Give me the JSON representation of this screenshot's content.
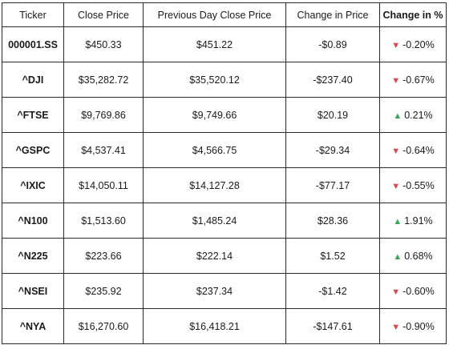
{
  "colors": {
    "down": "#e0454b",
    "up": "#3aa553"
  },
  "table": {
    "headers": [
      "Ticker",
      "Close Price",
      "Previous Day Close Price",
      "Change in Price",
      "Change in %"
    ],
    "rows": [
      {
        "ticker": "000001.SS",
        "close": "$450.33",
        "prev_close": "$451.22",
        "change": "-$0.89",
        "direction": "down",
        "arrow_icon": "triangle-down-icon",
        "pct": "-0.20%"
      },
      {
        "ticker": "^DJI",
        "close": "$35,282.72",
        "prev_close": "$35,520.12",
        "change": "-$237.40",
        "direction": "down",
        "arrow_icon": "triangle-down-icon",
        "pct": "-0.67%"
      },
      {
        "ticker": "^FTSE",
        "close": "$9,769.86",
        "prev_close": "$9,749.66",
        "change": "$20.19",
        "direction": "up",
        "arrow_icon": "triangle-up-icon",
        "pct": "0.21%"
      },
      {
        "ticker": "^GSPC",
        "close": "$4,537.41",
        "prev_close": "$4,566.75",
        "change": "-$29.34",
        "direction": "down",
        "arrow_icon": "triangle-down-icon",
        "pct": "-0.64%"
      },
      {
        "ticker": "^IXIC",
        "close": "$14,050.11",
        "prev_close": "$14,127.28",
        "change": "-$77.17",
        "direction": "down",
        "arrow_icon": "triangle-down-icon",
        "pct": "-0.55%"
      },
      {
        "ticker": "^N100",
        "close": "$1,513.60",
        "prev_close": "$1,485.24",
        "change": "$28.36",
        "direction": "up",
        "arrow_icon": "triangle-up-icon",
        "pct": "1.91%"
      },
      {
        "ticker": "^N225",
        "close": "$223.66",
        "prev_close": "$222.14",
        "change": "$1.52",
        "direction": "up",
        "arrow_icon": "triangle-up-icon",
        "pct": "0.68%"
      },
      {
        "ticker": "^NSEI",
        "close": "$235.92",
        "prev_close": "$237.34",
        "change": "-$1.42",
        "direction": "down",
        "arrow_icon": "triangle-down-icon",
        "pct": "-0.60%"
      },
      {
        "ticker": "^NYA",
        "close": "$16,270.60",
        "prev_close": "$16,418.21",
        "change": "-$147.61",
        "direction": "down",
        "arrow_icon": "triangle-down-icon",
        "pct": "-0.90%"
      }
    ]
  }
}
